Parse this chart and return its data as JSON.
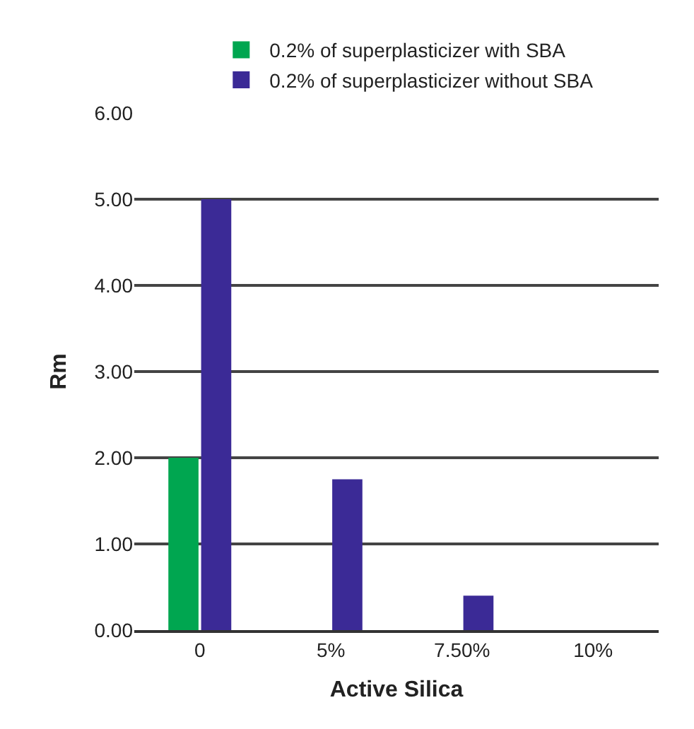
{
  "chart_data": {
    "type": "bar",
    "xlabel": "Active Silica",
    "ylabel": "Rm",
    "categories": [
      "0",
      "5%",
      "7.50%",
      "10%"
    ],
    "series": [
      {
        "name": "0.2% of superplasticizer with SBA",
        "color": "#00a650",
        "values": [
          2.0,
          null,
          null,
          null
        ]
      },
      {
        "name": "0.2% of superplasticizer without SBA",
        "color": "#3b2a96",
        "values": [
          5.0,
          1.75,
          0.4,
          null
        ]
      }
    ],
    "ylim": [
      0,
      6
    ],
    "yticks": [
      {
        "value": 0,
        "label": "0.00"
      },
      {
        "value": 1,
        "label": "1.00"
      },
      {
        "value": 2,
        "label": "2.00"
      },
      {
        "value": 3,
        "label": "3.00"
      },
      {
        "value": 4,
        "label": "4.00"
      },
      {
        "value": 5,
        "label": "5.00"
      },
      {
        "value": 6,
        "label": "6.00"
      }
    ],
    "grid": "y",
    "legend": "top"
  }
}
